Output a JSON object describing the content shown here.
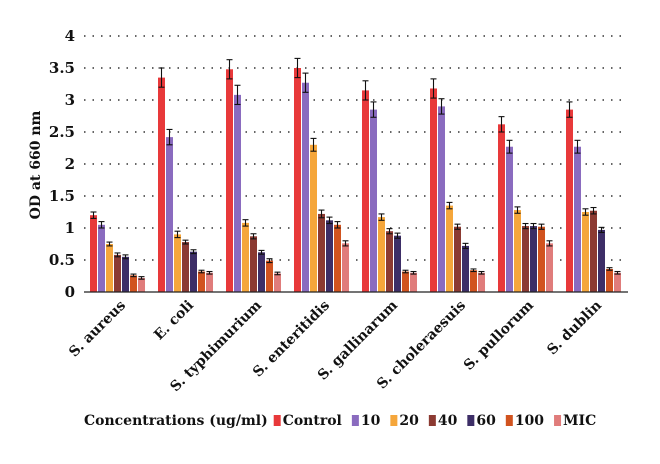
{
  "chart_data": {
    "type": "bar",
    "title": "",
    "xlabel": "",
    "ylabel": "OD at 660 nm",
    "ylim": [
      0,
      4
    ],
    "yticks": [
      "0",
      "0.5",
      "1",
      "1.5",
      "2",
      "2.5",
      "3",
      "3.5",
      "4"
    ],
    "grid": true,
    "legend_title": "Concentrations (ug/ml)",
    "legend_position": "bottom",
    "categories": [
      "S. aureus",
      "E. coli",
      "S. typhimurium",
      "S. enteritidis",
      "S. gallinarum",
      "S. choleraesuis",
      "S. pullorum",
      "S. dublin"
    ],
    "series": [
      {
        "name": "Control",
        "color": "#e8393a",
        "values": [
          1.2,
          3.35,
          3.48,
          3.5,
          3.15,
          3.18,
          2.62,
          2.85
        ],
        "errors": [
          0.05,
          0.15,
          0.15,
          0.15,
          0.15,
          0.15,
          0.12,
          0.12
        ]
      },
      {
        "name": "10",
        "color": "#8a6bbf",
        "values": [
          1.05,
          2.42,
          3.08,
          3.27,
          2.85,
          2.9,
          2.27,
          2.27
        ],
        "errors": [
          0.05,
          0.12,
          0.15,
          0.15,
          0.12,
          0.12,
          0.1,
          0.1
        ]
      },
      {
        "name": "20",
        "color": "#f5a63b",
        "values": [
          0.75,
          0.9,
          1.08,
          2.3,
          1.17,
          1.35,
          1.28,
          1.25
        ],
        "errors": [
          0.03,
          0.05,
          0.05,
          0.1,
          0.05,
          0.05,
          0.05,
          0.05
        ]
      },
      {
        "name": "40",
        "color": "#8c3a32",
        "values": [
          0.58,
          0.78,
          0.87,
          1.22,
          0.95,
          1.02,
          1.03,
          1.27
        ],
        "errors": [
          0.03,
          0.03,
          0.04,
          0.06,
          0.04,
          0.04,
          0.04,
          0.05
        ]
      },
      {
        "name": "60",
        "color": "#3d2e67",
        "values": [
          0.55,
          0.63,
          0.62,
          1.12,
          0.88,
          0.72,
          1.03,
          0.97
        ],
        "errors": [
          0.03,
          0.03,
          0.03,
          0.05,
          0.04,
          0.04,
          0.04,
          0.04
        ]
      },
      {
        "name": "100",
        "color": "#d1531f",
        "values": [
          0.26,
          0.32,
          0.49,
          1.05,
          0.32,
          0.34,
          1.02,
          0.36
        ],
        "errors": [
          0.02,
          0.02,
          0.03,
          0.05,
          0.02,
          0.02,
          0.04,
          0.02
        ]
      },
      {
        "name": "MIC",
        "color": "#e07c7b",
        "values": [
          0.22,
          0.3,
          0.29,
          0.76,
          0.3,
          0.3,
          0.76,
          0.3
        ],
        "errors": [
          0.02,
          0.02,
          0.02,
          0.04,
          0.02,
          0.02,
          0.04,
          0.02
        ]
      }
    ]
  }
}
